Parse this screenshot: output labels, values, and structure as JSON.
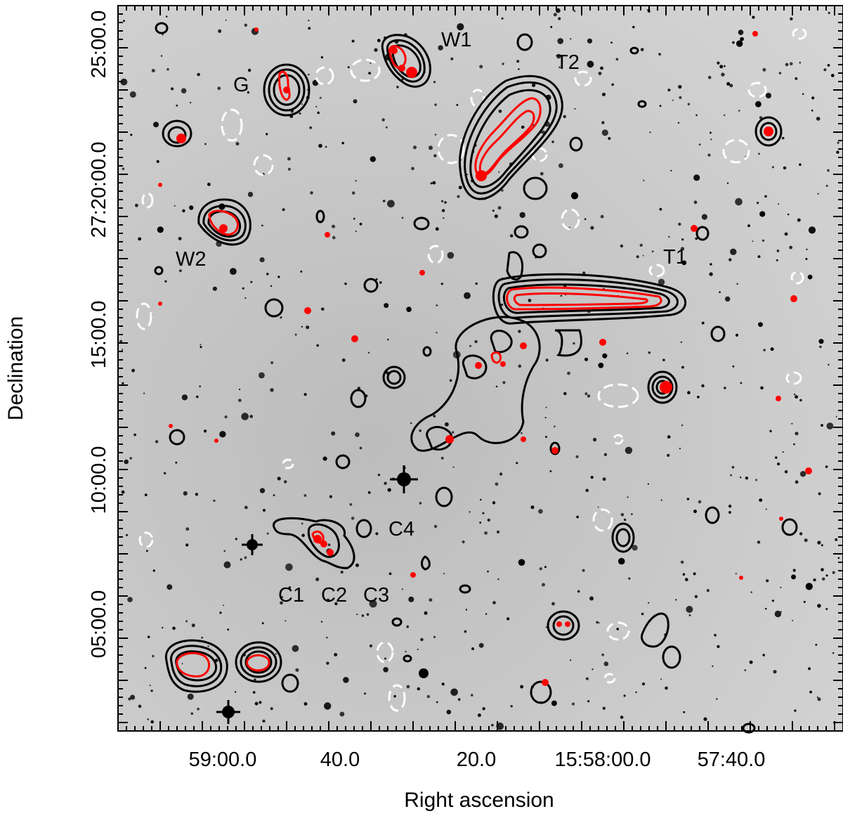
{
  "axes": {
    "xlabel": "Right ascension",
    "ylabel": "Declination",
    "xticks": [
      "59:00.0",
      "40.0",
      "20.0",
      "15:58:00.0",
      "57:40.0"
    ],
    "yticks": [
      "25:00.0",
      "27:20:00.0",
      "15:00.0",
      "10:00.0",
      "05:00.0"
    ]
  },
  "labels": {
    "W1": "W1",
    "T2": "T2",
    "G": "G",
    "W2": "W2",
    "T1": "T1",
    "C4": "C4",
    "C1": "C1",
    "C2": "C2",
    "C3": "C3"
  },
  "colors": {
    "background": "#c9c9c9",
    "black_contour": "#000000",
    "red_contour": "#ff0000",
    "white_contour": "#ffffff"
  }
}
